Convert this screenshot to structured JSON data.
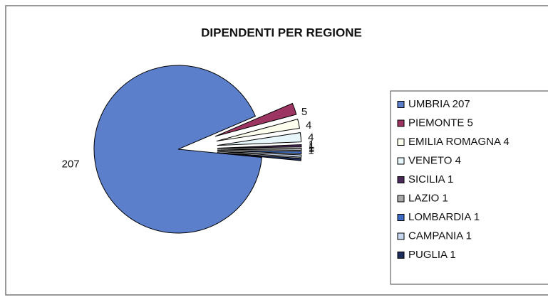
{
  "chart_data": {
    "type": "pie",
    "title": "DIPENDENTI PER REGIONE",
    "categories": [
      "UMBRIA 207",
      "PIEMONTE 5",
      "EMILIA ROMAGNA 4",
      "VENETO 4",
      "SICILIA 1",
      "LAZIO 1",
      "LOMBARDIA 1",
      "CAMPANIA 1",
      "PUGLIA 1"
    ],
    "values": [
      207,
      5,
      4,
      4,
      1,
      1,
      1,
      1,
      1
    ],
    "colors": [
      "#5b7fcb",
      "#9c3561",
      "#fffff0",
      "#e6f6fa",
      "#4a2a58",
      "#a8a8a8",
      "#3f6cc4",
      "#c6d6ee",
      "#1c2c5c"
    ],
    "legend": "right"
  }
}
